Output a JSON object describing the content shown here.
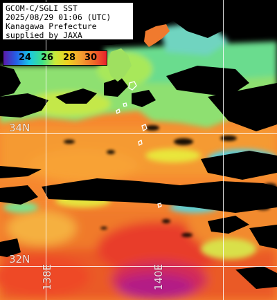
{
  "info": {
    "lines": [
      "GCOM-C/SGLI SST",
      "2025/08/29 01:06 (UTC)",
      "Kanagawa Prefecture",
      "supplied by JAXA"
    ]
  },
  "colorbar": {
    "ticks": [
      "24",
      "26",
      "28",
      "30"
    ],
    "colors": [
      "#5a1aa8",
      "#2460e8",
      "#19c8e6",
      "#3ee08a",
      "#c9ea3a",
      "#f0d020",
      "#f4a030",
      "#f06a28",
      "#e8202c"
    ]
  },
  "grid": {
    "lat_labels": [
      "34N",
      "32N"
    ],
    "lon_labels": [
      "138E",
      "140E"
    ]
  }
}
